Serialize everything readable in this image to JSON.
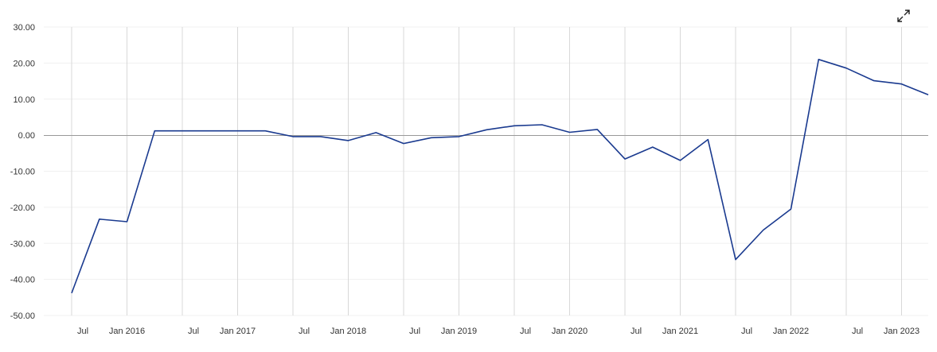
{
  "chart_data": {
    "type": "line",
    "title": "",
    "xlabel": "",
    "ylabel": "",
    "ylim": [
      -50,
      30
    ],
    "yticks": [
      "30.00",
      "20.00",
      "10.00",
      "0.00",
      "-10.00",
      "-20.00",
      "-30.00",
      "-40.00",
      "-50.00"
    ],
    "xticks": [
      "Jul",
      "Jan 2016",
      "Jul",
      "Jan 2017",
      "Jul",
      "Jan 2018",
      "Jul",
      "Jan 2019",
      "Jul",
      "Jan 2020",
      "Jul",
      "Jan 2021",
      "Jul",
      "Jan 2022",
      "Jul",
      "Jan 2023"
    ],
    "grid": true,
    "series": [
      {
        "color": "#1a3a8f",
        "x": [
          "2015-07",
          "2015-10",
          "2016-01",
          "2016-04",
          "2016-07",
          "2016-10",
          "2017-01",
          "2017-04",
          "2017-07",
          "2017-10",
          "2018-01",
          "2018-04",
          "2018-07",
          "2018-10",
          "2019-01",
          "2019-04",
          "2019-07",
          "2019-10",
          "2020-01",
          "2020-04",
          "2020-07",
          "2020-10",
          "2021-01",
          "2021-04",
          "2021-07",
          "2021-10",
          "2022-01",
          "2022-04",
          "2022-07",
          "2022-10",
          "2023-01",
          "2023-04"
        ],
        "values": [
          -43.8,
          -23.3,
          -24.0,
          1.2,
          1.2,
          1.2,
          1.2,
          1.2,
          -0.4,
          -0.4,
          -1.5,
          0.7,
          -2.3,
          -0.7,
          -0.4,
          1.5,
          2.6,
          2.9,
          0.8,
          1.6,
          -6.6,
          -3.3,
          -7.0,
          -1.2,
          -34.5,
          -26.3,
          -20.5,
          21.0,
          18.6,
          15.1,
          14.2,
          11.2
        ]
      }
    ]
  },
  "icons": {
    "expand": "expand-icon"
  }
}
